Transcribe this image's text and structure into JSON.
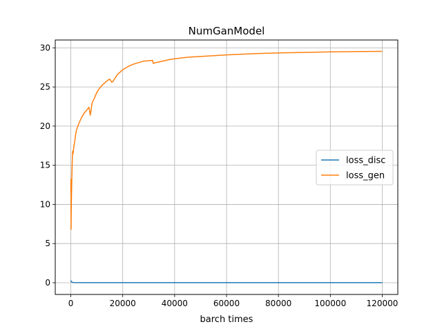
{
  "chart_data": {
    "type": "line",
    "title": "NumGanModel",
    "xlabel": "barch times",
    "ylabel": "",
    "xlim": [
      -6000,
      126000
    ],
    "ylim": [
      -1.5,
      31.0
    ],
    "xticks": [
      0,
      20000,
      40000,
      60000,
      80000,
      100000,
      120000
    ],
    "yticks": [
      0,
      5,
      10,
      15,
      20,
      25,
      30
    ],
    "grid": true,
    "legend_position": "center-right",
    "series": [
      {
        "name": "loss_disc",
        "color": "#1f77b4",
        "x": [
          0,
          100,
          300,
          600,
          1000,
          5000,
          20000,
          40000,
          60000,
          80000,
          100000,
          120000
        ],
        "y": [
          0.3,
          0.2,
          0.1,
          0.05,
          0.02,
          0.01,
          0.01,
          0.01,
          0.01,
          0.01,
          0.01,
          0.01
        ]
      },
      {
        "name": "loss_gen",
        "color": "#ff7f0e",
        "x": [
          0,
          50,
          100,
          150,
          250,
          400,
          550,
          700,
          900,
          1200,
          1500,
          1800,
          2200,
          2700,
          3300,
          4000,
          5000,
          6000,
          7000,
          7500,
          7800,
          8100,
          8500,
          9000,
          10000,
          11000,
          12000,
          13000,
          14000,
          15000,
          15800,
          16200,
          16800,
          18000,
          20000,
          22000,
          24000,
          26000,
          28000,
          30000,
          31500,
          31800,
          32500,
          34000,
          36000,
          38000,
          40000,
          45000,
          50000,
          55000,
          60000,
          70000,
          80000,
          90000,
          100000,
          110000,
          120000
        ],
        "y": [
          11.5,
          13.2,
          6.8,
          9.0,
          11.0,
          13.5,
          15.5,
          16.8,
          16.5,
          17.5,
          18.0,
          18.8,
          19.5,
          20.0,
          20.5,
          21.0,
          21.6,
          22.0,
          22.4,
          21.4,
          22.0,
          22.8,
          23.2,
          23.5,
          24.3,
          24.8,
          25.2,
          25.5,
          25.8,
          26.0,
          25.6,
          25.7,
          26.0,
          26.6,
          27.2,
          27.6,
          27.9,
          28.1,
          28.3,
          28.35,
          28.4,
          28.0,
          28.1,
          28.2,
          28.35,
          28.5,
          28.6,
          28.8,
          28.9,
          29.0,
          29.1,
          29.25,
          29.35,
          29.42,
          29.48,
          29.52,
          29.55
        ]
      }
    ]
  }
}
